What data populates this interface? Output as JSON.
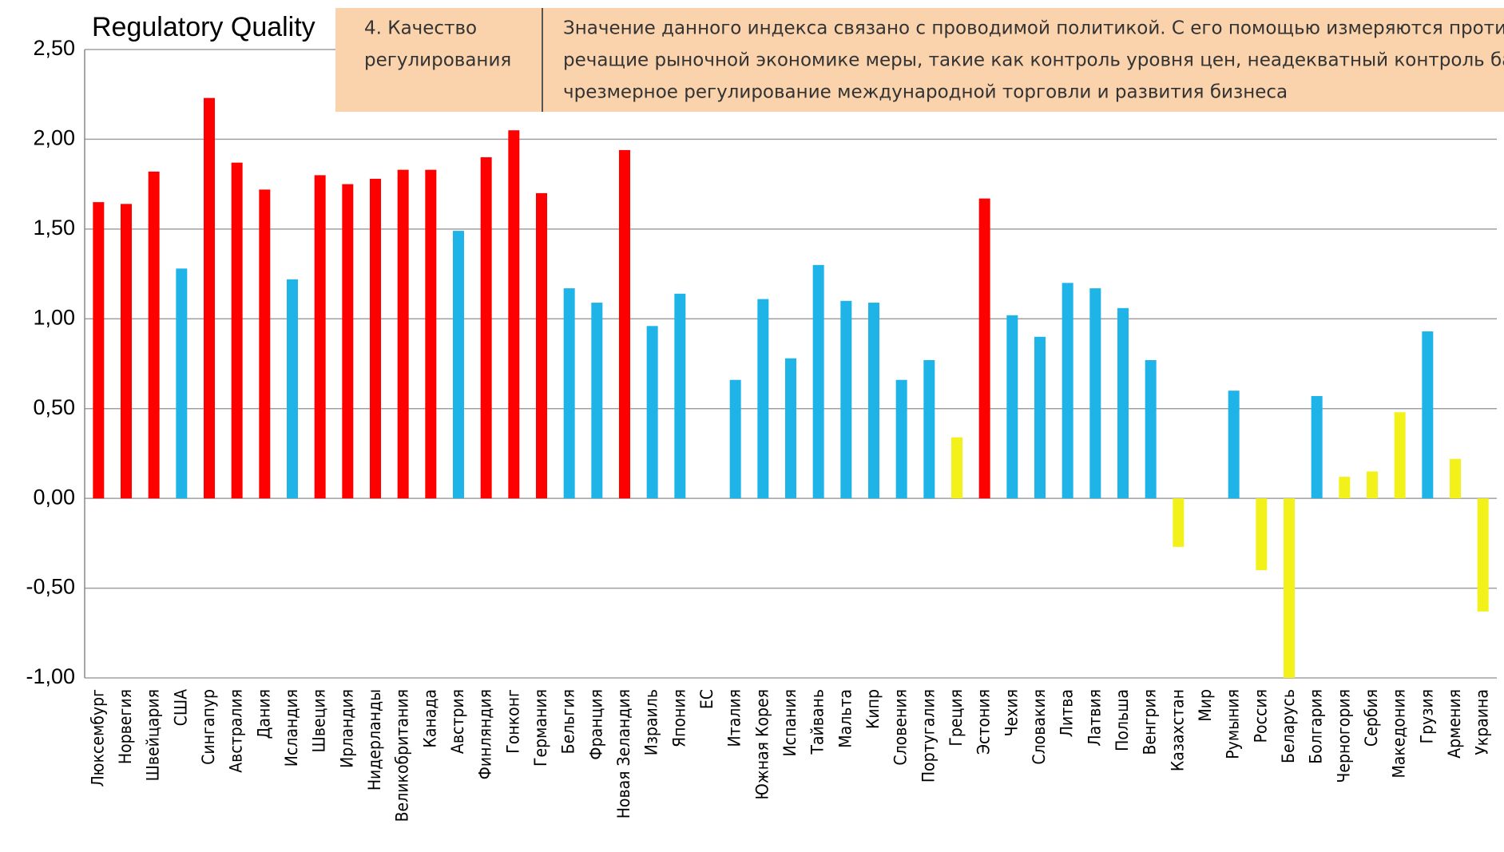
{
  "chart_data": {
    "type": "bar",
    "title": "Regulatory Quality",
    "panel": {
      "heading": [
        "4. Качество",
        "регулирования"
      ],
      "description": [
        "Значение данного индекса связано с проводимой политикой. С его  помощью измеряются противо-",
        "речащие рыночной экономике меры, такие как контроль уровня цен, неадекватный контроль банков,",
        "чрезмерное регулирование международной торговли и развития бизнеса"
      ]
    },
    "categories": [
      "Люксембург",
      "Норвегия",
      "Швейцария",
      "США",
      "Сингапур",
      "Австралия",
      "Дания",
      "Исландия",
      "Швеция",
      "Ирландия",
      "Нидерланды",
      "Великобритания",
      "Канада",
      "Австрия",
      "Финляндия",
      "Гонконг",
      "Германия",
      "Бельгия",
      "Франция",
      "Новая Зеландия",
      "Израиль",
      "Япония",
      "ЕС",
      "Италия",
      "Южная Корея",
      "Испания",
      "Тайвань",
      "Мальта",
      "Кипр",
      "Словения",
      "Португалия",
      "Греция",
      "Эстония",
      "Чехия",
      "Словакия",
      "Литва",
      "Латвия",
      "Польша",
      "Венгрия",
      "Казахстан",
      "Мир",
      "Румыния",
      "Россия",
      "Беларусь",
      "Болгария",
      "Черногория",
      "Сербия",
      "Македония",
      "Грузия",
      "Армения",
      "Украина"
    ],
    "values": [
      1.65,
      1.64,
      1.82,
      1.28,
      2.23,
      1.87,
      1.72,
      1.22,
      1.8,
      1.75,
      1.78,
      1.83,
      1.83,
      1.49,
      1.9,
      2.05,
      1.7,
      1.17,
      1.09,
      1.94,
      0.96,
      1.14,
      null,
      0.66,
      1.11,
      0.78,
      1.3,
      1.1,
      1.09,
      0.66,
      0.77,
      0.34,
      1.67,
      1.02,
      0.9,
      1.2,
      1.17,
      1.06,
      0.77,
      -0.27,
      null,
      0.6,
      -0.4,
      -1.0,
      0.57,
      0.12,
      0.15,
      0.48,
      0.93,
      0.22,
      -0.63
    ],
    "colors": [
      "#ff0000",
      "#ff0000",
      "#ff0000",
      "#1fb4e8",
      "#ff0000",
      "#ff0000",
      "#ff0000",
      "#1fb4e8",
      "#ff0000",
      "#ff0000",
      "#ff0000",
      "#ff0000",
      "#ff0000",
      "#1fb4e8",
      "#ff0000",
      "#ff0000",
      "#ff0000",
      "#1fb4e8",
      "#1fb4e8",
      "#ff0000",
      "#1fb4e8",
      "#1fb4e8",
      "#1fb4e8",
      "#1fb4e8",
      "#1fb4e8",
      "#1fb4e8",
      "#1fb4e8",
      "#1fb4e8",
      "#1fb4e8",
      "#1fb4e8",
      "#1fb4e8",
      "#f2f21a",
      "#ff0000",
      "#1fb4e8",
      "#1fb4e8",
      "#1fb4e8",
      "#1fb4e8",
      "#1fb4e8",
      "#1fb4e8",
      "#f2f21a",
      "#1fb4e8",
      "#1fb4e8",
      "#f2f21a",
      "#f2f21a",
      "#1fb4e8",
      "#f2f21a",
      "#f2f21a",
      "#f2f21a",
      "#1fb4e8",
      "#f2f21a",
      "#f2f21a"
    ],
    "ylim": [
      -1,
      2.5
    ],
    "yticks": [
      {
        "value": -1,
        "label": "-1,00"
      },
      {
        "value": -0.5,
        "label": "-0,50"
      },
      {
        "value": 0,
        "label": "0,00"
      },
      {
        "value": 0.5,
        "label": "0,50"
      },
      {
        "value": 1,
        "label": "1,00"
      },
      {
        "value": 1.5,
        "label": "1,50"
      },
      {
        "value": 2,
        "label": "2,00"
      },
      {
        "value": 2.5,
        "label": "2,50"
      }
    ],
    "grid": true
  }
}
